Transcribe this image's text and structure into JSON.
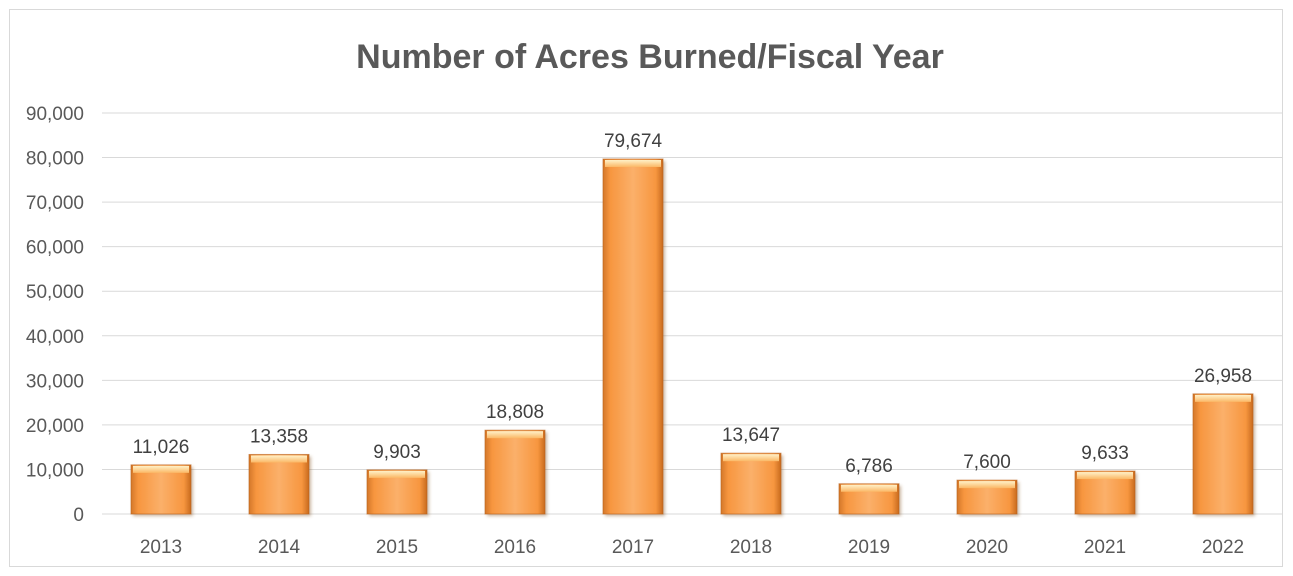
{
  "chart_data": {
    "type": "bar",
    "title": "Number of Acres Burned/Fiscal Year",
    "xlabel": "",
    "ylabel": "",
    "categories": [
      "2013",
      "2014",
      "2015",
      "2016",
      "2017",
      "2018",
      "2019",
      "2020",
      "2021",
      "2022"
    ],
    "values": [
      11026,
      13358,
      9903,
      18808,
      79674,
      13647,
      6786,
      7600,
      9633,
      26958
    ],
    "value_labels": [
      "11,026",
      "13,358",
      "9,903",
      "18,808",
      "79,674",
      "13,647",
      "6,786",
      "7,600",
      "9,633",
      "26,958"
    ],
    "ylim": [
      0,
      90000
    ],
    "yticks": [
      0,
      10000,
      20000,
      30000,
      40000,
      50000,
      60000,
      70000,
      80000,
      90000
    ],
    "ytick_labels": [
      "0",
      "10,000",
      "20,000",
      "30,000",
      "40,000",
      "50,000",
      "60,000",
      "70,000",
      "80,000",
      "90,000"
    ],
    "grid": true,
    "legend": "none",
    "bar_color": "#f79646",
    "bar_color_light": "#fcd49b",
    "bar_color_dark": "#c0651c",
    "text_color": "#595959",
    "gridline_color": "#d9d9d9"
  }
}
